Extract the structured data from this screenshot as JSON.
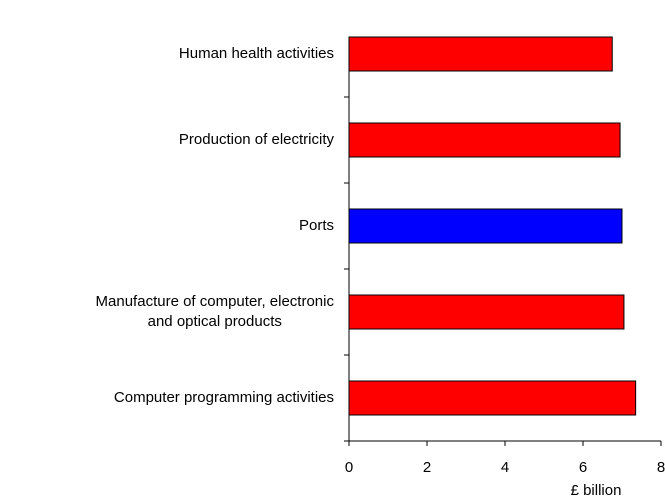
{
  "chart_data": {
    "type": "barh",
    "categories": [
      "Human health activities",
      "Production of electricity",
      "Ports",
      [
        "Manufacture of computer, electronic",
        "and optical products"
      ],
      "Computer programming activities"
    ],
    "values": [
      6.75,
      6.95,
      7.0,
      7.05,
      7.35
    ],
    "colors": [
      "#ff0000",
      "#ff0000",
      "#0000ff",
      "#ff0000",
      "#ff0000"
    ],
    "xlim": [
      0,
      8
    ],
    "xticks": [
      0,
      2,
      4,
      6,
      8
    ],
    "xlabel": "£ billion",
    "grid": false
  }
}
